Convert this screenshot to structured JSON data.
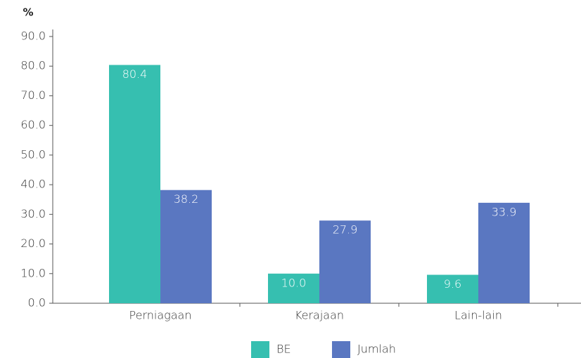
{
  "chart_data": {
    "type": "bar",
    "ylabel": "%",
    "categories": [
      "Perniagaan",
      "Kerajaan",
      "Lain-lain"
    ],
    "series": [
      {
        "name": "BE",
        "color": "#36bfb0",
        "values": [
          80.4,
          10.0,
          9.6
        ],
        "value_labels": [
          "80.4",
          "10.0",
          "9.6"
        ]
      },
      {
        "name": "Jumlah",
        "color": "#5a77c1",
        "values": [
          38.2,
          27.9,
          33.9
        ]
      }
    ],
    "ylim": [
      0,
      90
    ],
    "yticks": [
      {
        "value": 0,
        "label": "0.0"
      },
      {
        "value": 10,
        "label": "10.0"
      },
      {
        "value": 20,
        "label": "20.0"
      },
      {
        "value": 30,
        "label": "30.0"
      },
      {
        "value": 40,
        "label": "40.0"
      },
      {
        "value": 50,
        "label": "50.0"
      },
      {
        "value": 60,
        "label": "60.0"
      },
      {
        "value": 70,
        "label": "70.0"
      },
      {
        "value": 80,
        "label": "80.0"
      },
      {
        "value": 90,
        "label": "90.0"
      }
    ],
    "grid": false,
    "legend": "bottom"
  }
}
